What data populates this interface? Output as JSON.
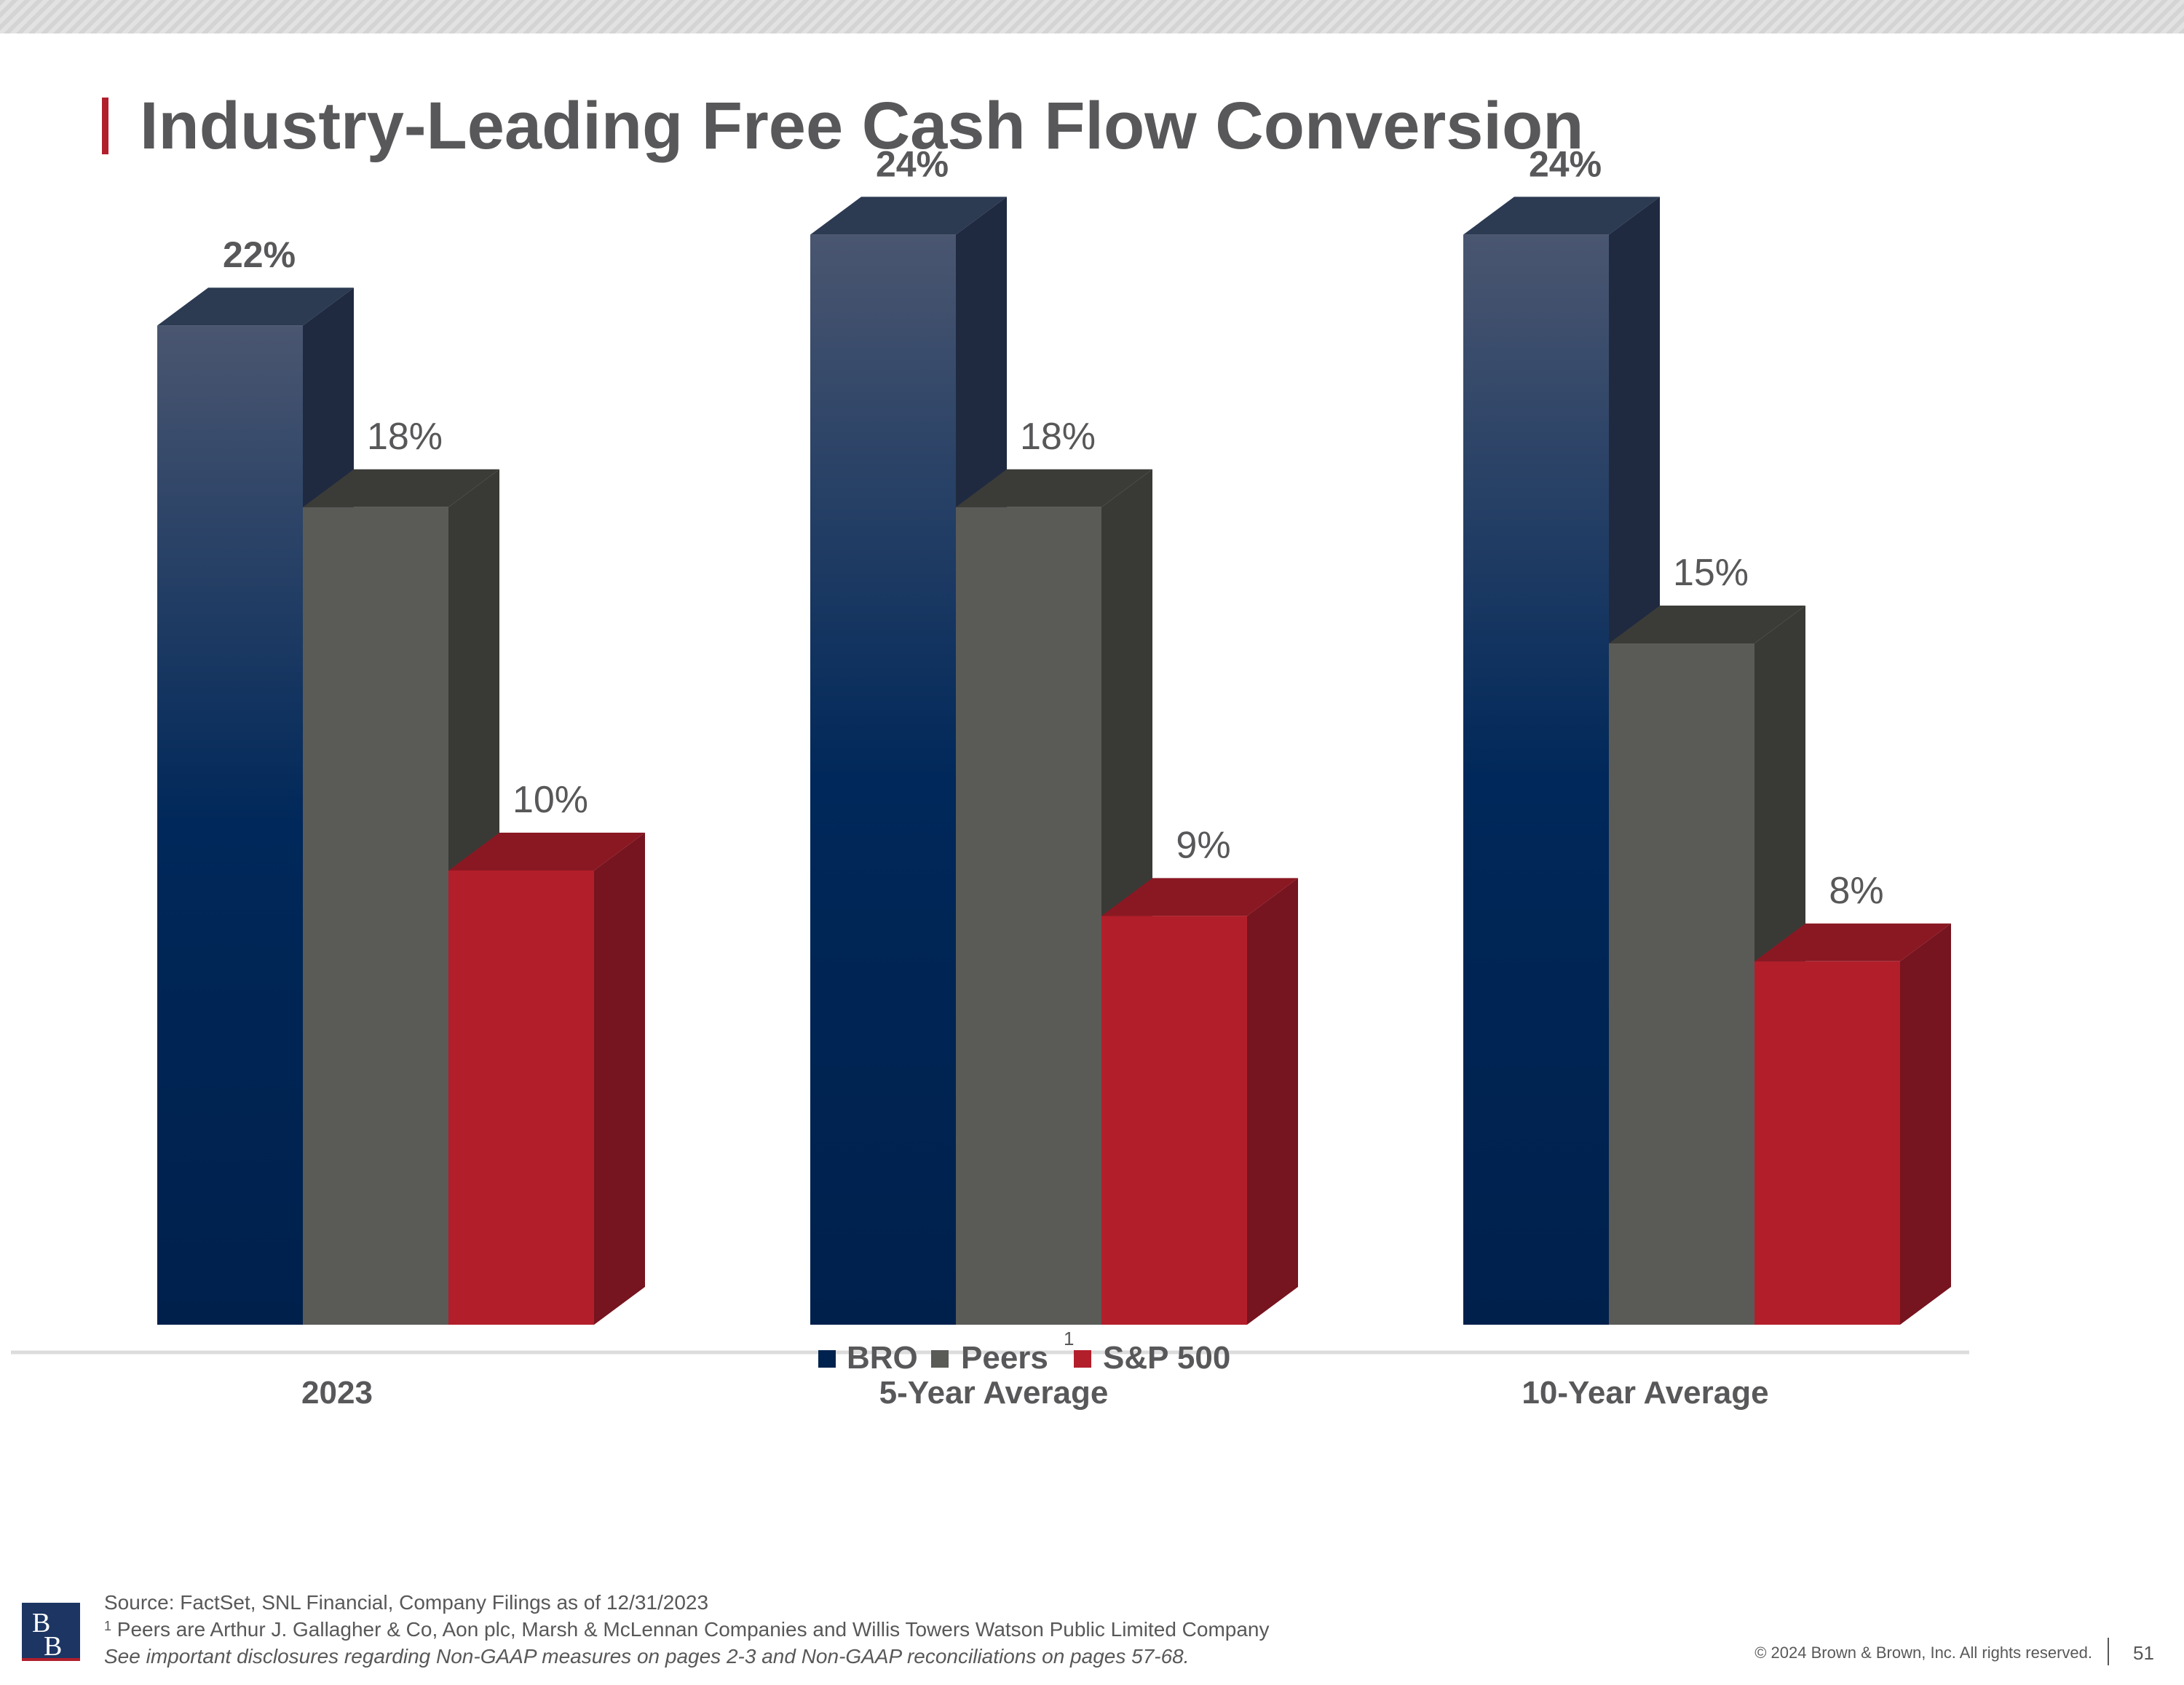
{
  "header": {
    "title": "Industry-Leading Free Cash Flow Conversion"
  },
  "colors": {
    "bro": "#00224e",
    "peers": "#5a5b57",
    "sp500": "#b31e2b",
    "title": "#58585a",
    "accent": "#b11f2c"
  },
  "chart_data": {
    "type": "bar",
    "title": "Industry-Leading Free Cash Flow Conversion",
    "categories": [
      "2023",
      "5-Year Average",
      "10-Year Average"
    ],
    "series": [
      {
        "name": "BRO",
        "values": [
          22,
          24,
          24
        ],
        "labels": [
          "22%",
          "24%",
          "24%"
        ]
      },
      {
        "name": "Peers",
        "values": [
          18,
          18,
          15
        ],
        "labels": [
          "18%",
          "18%",
          "15%"
        ]
      },
      {
        "name": "S&P 500",
        "values": [
          10,
          9,
          8
        ],
        "labels": [
          "10%",
          "9%",
          "8%"
        ]
      }
    ],
    "legend": {
      "position": "bottom-center",
      "items": [
        "BRO",
        "Peers",
        "S&P 500"
      ],
      "footnote_marker": "1"
    },
    "ylim": [
      0,
      25
    ],
    "xlabel": "",
    "ylabel": "",
    "grid": false
  },
  "footer": {
    "source": "Source: FactSet, SNL Financial, Company Filings as of 12/31/2023",
    "footnote_marker": "1",
    "footnote_text": "Peers are Arthur J. Gallagher & Co, Aon plc, Marsh & McLennan Companies and Willis Towers Watson Public Limited Company",
    "disclosure": "See important disclosures regarding Non-GAAP measures on pages 2-3 and Non-GAAP reconciliations on pages 57-68.",
    "copyright": "© 2024 Brown & Brown, Inc. All rights reserved.",
    "page_number": "51"
  },
  "logo": {
    "letters": "BB"
  }
}
